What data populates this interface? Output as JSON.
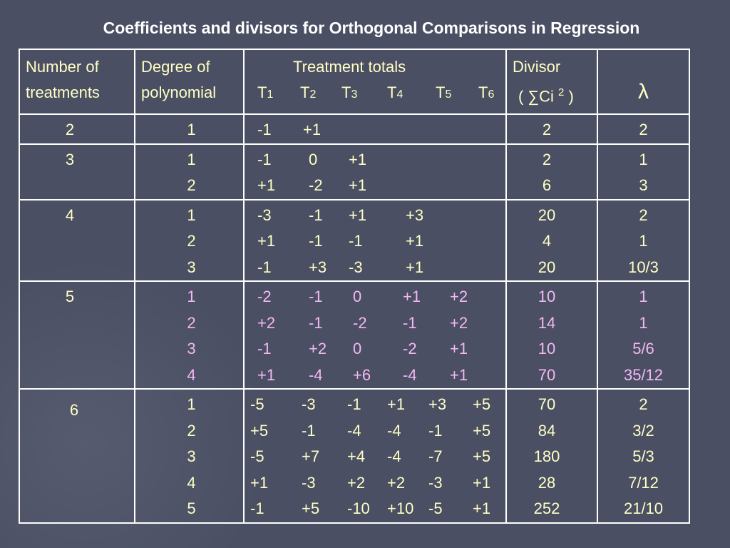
{
  "title": "Coefficients and divisors for Orthogonal Comparisons in Regression",
  "header": {
    "col1_line1": "Number of",
    "col1_line2": "treatments",
    "col2_line1": "Degree of",
    "col2_line2": "polynomial",
    "col3_line1": "Treatment totals",
    "col3_totals": [
      "T",
      "T",
      "T",
      "T",
      "T",
      "T"
    ],
    "col3_subs": [
      "1",
      "2",
      "3",
      "4",
      "5",
      "6"
    ],
    "col4_line1": "Divisor",
    "col4_line2": "( ∑Ci",
    "col4_sup": "2",
    "col4_close": ")",
    "col5": "λ"
  },
  "groups": [
    {
      "n": "2",
      "rows": [
        {
          "degree": "1",
          "coefs": [
            "-1",
            "+1"
          ],
          "divisor": "2",
          "lambda": "2"
        }
      ]
    },
    {
      "n": "3",
      "rows": [
        {
          "degree": "1",
          "coefs": [
            "-1",
            "0",
            "+1"
          ],
          "divisor": "2",
          "lambda": "1"
        },
        {
          "degree": "2",
          "coefs": [
            "+1",
            "-2",
            "+1"
          ],
          "divisor": "6",
          "lambda": "3"
        }
      ]
    },
    {
      "n": "4",
      "rows": [
        {
          "degree": "1",
          "coefs": [
            "-3",
            "-1",
            "+1",
            "+3"
          ],
          "divisor": "20",
          "lambda": "2"
        },
        {
          "degree": "2",
          "coefs": [
            "+1",
            "-1",
            "-1",
            "+1"
          ],
          "divisor": "4",
          "lambda": "1"
        },
        {
          "degree": "3",
          "coefs": [
            "-1",
            "+3",
            "-3",
            "+1"
          ],
          "divisor": "20",
          "lambda": "10/3"
        }
      ]
    },
    {
      "n": "5",
      "rows": [
        {
          "degree": "1",
          "coefs": [
            "-2",
            "-1",
            "0",
            "+1",
            "+2"
          ],
          "divisor": "10",
          "lambda": "1"
        },
        {
          "degree": "2",
          "coefs": [
            "+2",
            "-1",
            "-2",
            "-1",
            "+2"
          ],
          "divisor": "14",
          "lambda": "1"
        },
        {
          "degree": "3",
          "coefs": [
            "-1",
            "+2",
            "0",
            "-2",
            "+1"
          ],
          "divisor": "10",
          "lambda": "5/6"
        },
        {
          "degree": "4",
          "coefs": [
            "+1",
            "-4",
            "+6",
            "-4",
            "+1"
          ],
          "divisor": "70",
          "lambda": "35/12"
        }
      ]
    },
    {
      "n": "6",
      "rows": [
        {
          "degree": "1",
          "coefs": [
            "-5",
            "-3",
            "-1",
            "+1",
            "+3",
            "+5"
          ],
          "divisor": "70",
          "lambda": "2"
        },
        {
          "degree": "2",
          "coefs": [
            "+5",
            "-1",
            "-4",
            "-4",
            "-1",
            "+5"
          ],
          "divisor": "84",
          "lambda": "3/2"
        },
        {
          "degree": "3",
          "coefs": [
            "-5",
            "+7",
            "+4",
            "-4",
            "-7",
            "+5"
          ],
          "divisor": "180",
          "lambda": "5/3"
        },
        {
          "degree": "4",
          "coefs": [
            "+1",
            "-3",
            "+2",
            "+2",
            "-3",
            "+1"
          ],
          "divisor": "28",
          "lambda": "7/12"
        },
        {
          "degree": "5",
          "coefs": [
            "-1",
            "+5",
            "-10",
            "+10",
            "-5",
            "+1"
          ],
          "divisor": "252",
          "lambda": "21/10"
        }
      ]
    }
  ],
  "colors": {
    "background": "#4a4f63",
    "text": "#ffffc4",
    "highlight": "#f4b8f4",
    "border": "#ffffff",
    "title": "#ffffff"
  }
}
